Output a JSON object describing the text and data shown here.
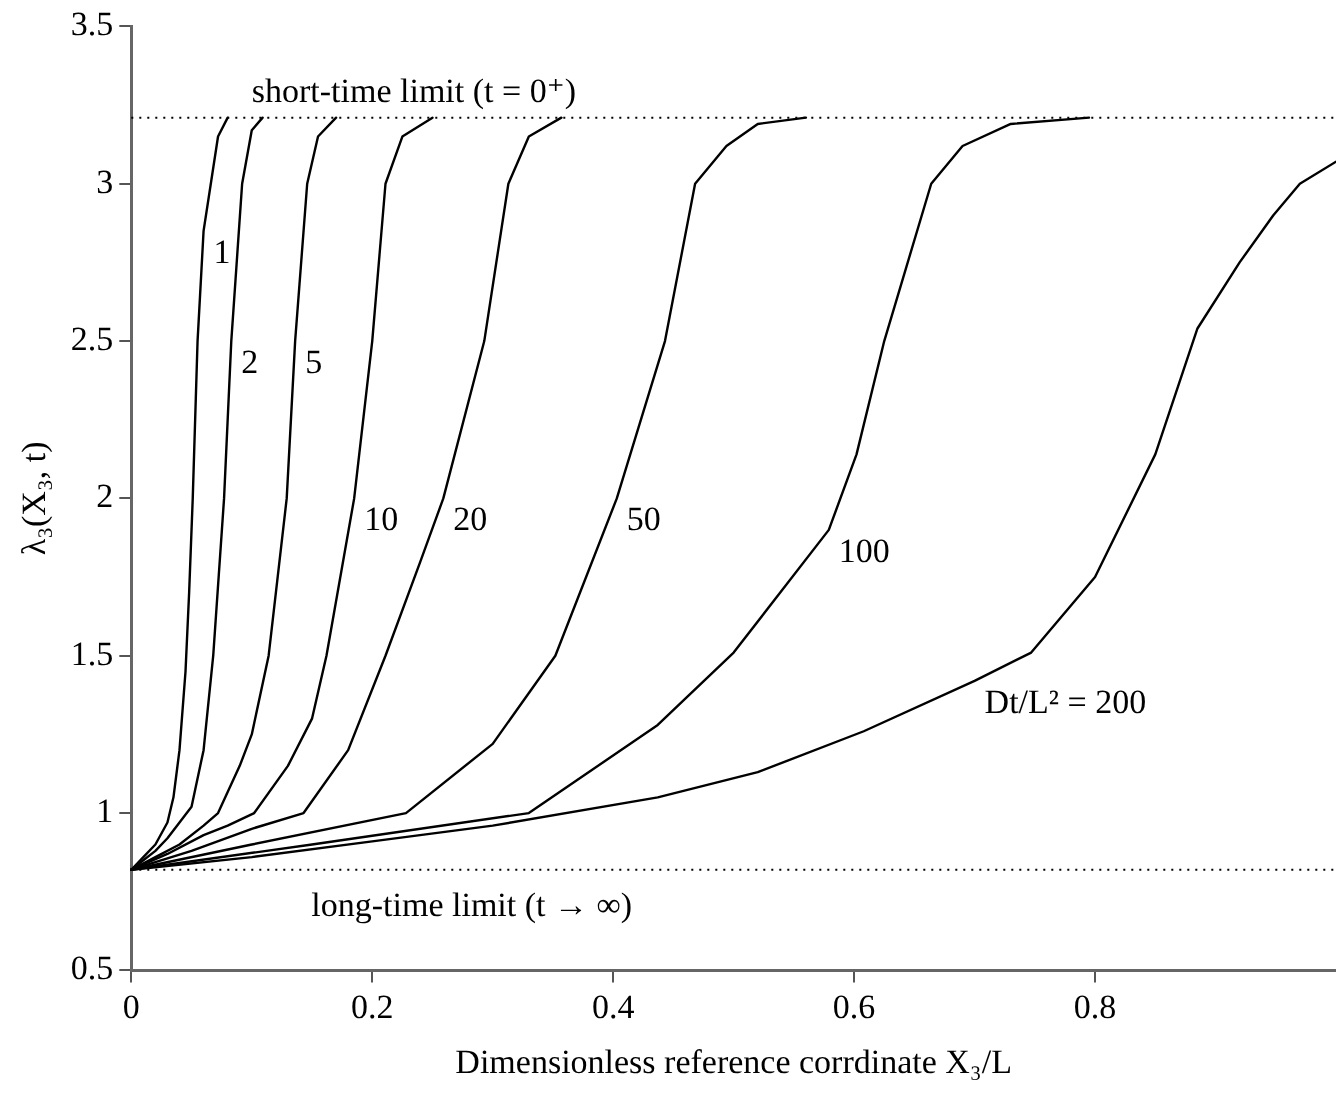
{
  "chart_data": {
    "type": "line",
    "xlabel": "Dimensionless reference corrdinate X₃/L",
    "ylabel": "λ₃(X₃, t)",
    "xlim": [
      0,
      1
    ],
    "xticks": [
      0,
      0.2,
      0.4,
      0.6,
      0.8
    ],
    "ylim": [
      0.5,
      3.5
    ],
    "yticks": [
      0.5,
      1,
      1.5,
      2,
      2.5,
      3,
      3.5
    ],
    "grid": false,
    "legend": false,
    "marker": "none",
    "line_style": "solid",
    "series": [
      {
        "color": "#000000",
        "x": [
          0,
          0.01,
          0.02,
          0.03,
          0.035,
          0.04,
          0.045,
          0.048,
          0.051,
          0.055,
          0.06,
          0.066,
          0.072,
          0.08
        ],
        "values": [
          0.82,
          0.86,
          0.9,
          0.97,
          1.05,
          1.2,
          1.45,
          1.7,
          2.0,
          2.5,
          2.85,
          3.0,
          3.15,
          3.21
        ]
      },
      {
        "color": "#000000",
        "x": [
          0,
          0.01,
          0.02,
          0.03,
          0.04,
          0.05,
          0.06,
          0.068,
          0.077,
          0.083,
          0.092,
          0.1,
          0.109
        ],
        "values": [
          0.82,
          0.85,
          0.88,
          0.92,
          0.97,
          1.02,
          1.2,
          1.5,
          2.0,
          2.5,
          3.0,
          3.17,
          3.21
        ]
      },
      {
        "color": "#000000",
        "x": [
          0,
          0.02,
          0.04,
          0.06,
          0.072,
          0.09,
          0.1,
          0.114,
          0.129,
          0.136,
          0.146,
          0.155,
          0.17
        ],
        "values": [
          0.82,
          0.86,
          0.9,
          0.96,
          1.0,
          1.15,
          1.25,
          1.5,
          2.0,
          2.5,
          3.0,
          3.15,
          3.21
        ]
      },
      {
        "color": "#000000",
        "x": [
          0,
          0.03,
          0.06,
          0.08,
          0.102,
          0.13,
          0.15,
          0.162,
          0.185,
          0.2,
          0.211,
          0.225,
          0.25
        ],
        "values": [
          0.82,
          0.87,
          0.93,
          0.96,
          1.0,
          1.15,
          1.3,
          1.5,
          2.0,
          2.5,
          3.0,
          3.15,
          3.21
        ]
      },
      {
        "color": "#000000",
        "x": [
          0,
          0.05,
          0.1,
          0.143,
          0.18,
          0.211,
          0.24,
          0.259,
          0.293,
          0.313,
          0.33,
          0.357
        ],
        "values": [
          0.82,
          0.88,
          0.95,
          1.0,
          1.2,
          1.5,
          1.8,
          2.0,
          2.5,
          3.0,
          3.15,
          3.21
        ]
      },
      {
        "color": "#000000",
        "x": [
          0,
          0.1,
          0.228,
          0.3,
          0.352,
          0.403,
          0.443,
          0.468,
          0.494,
          0.52,
          0.56
        ],
        "values": [
          0.82,
          0.9,
          1.0,
          1.22,
          1.5,
          2.0,
          2.5,
          3.0,
          3.12,
          3.19,
          3.21
        ]
      },
      {
        "color": "#000000",
        "x": [
          0,
          0.15,
          0.33,
          0.437,
          0.5,
          0.579,
          0.602,
          0.625,
          0.664,
          0.69,
          0.73,
          0.795
        ],
        "values": [
          0.82,
          0.9,
          1.0,
          1.28,
          1.51,
          1.9,
          2.14,
          2.5,
          3.0,
          3.12,
          3.19,
          3.21
        ]
      },
      {
        "color": "#000000",
        "x": [
          0,
          0.1,
          0.2,
          0.3,
          0.437,
          0.52,
          0.608,
          0.7,
          0.747,
          0.8,
          0.85,
          0.885,
          0.92,
          0.948,
          0.97,
          1.0
        ],
        "values": [
          0.82,
          0.86,
          0.91,
          0.96,
          1.05,
          1.13,
          1.26,
          1.42,
          1.51,
          1.75,
          2.14,
          2.54,
          2.75,
          2.9,
          3.0,
          3.07
        ]
      }
    ],
    "ref_lines": [
      {
        "axis": "y",
        "value": 3.21,
        "line_style": "dotted",
        "color": "#000000"
      },
      {
        "axis": "y",
        "value": 0.82,
        "label": "long-time limit (t → ∞)",
        "line_style": "dotted",
        "color": "#000000"
      }
    ],
    "annotations": [
      {
        "text": "short-time limit (t = 0⁺)",
        "x": 0.1,
        "y": 3.21
      },
      {
        "text": "1",
        "x": 0.06,
        "y": 2.85
      },
      {
        "text": "2",
        "x": 0.083,
        "y": 2.5
      },
      {
        "text": "5",
        "x": 0.136,
        "y": 2.5
      },
      {
        "text": "10",
        "x": 0.185,
        "y": 2.0
      },
      {
        "text": "20",
        "x": 0.259,
        "y": 2.0
      },
      {
        "text": "50",
        "x": 0.403,
        "y": 2.0
      },
      {
        "text": "100",
        "x": 0.579,
        "y": 1.9
      },
      {
        "text": "Dt/L² = 200",
        "x": 0.7,
        "y": 1.42
      }
    ]
  }
}
